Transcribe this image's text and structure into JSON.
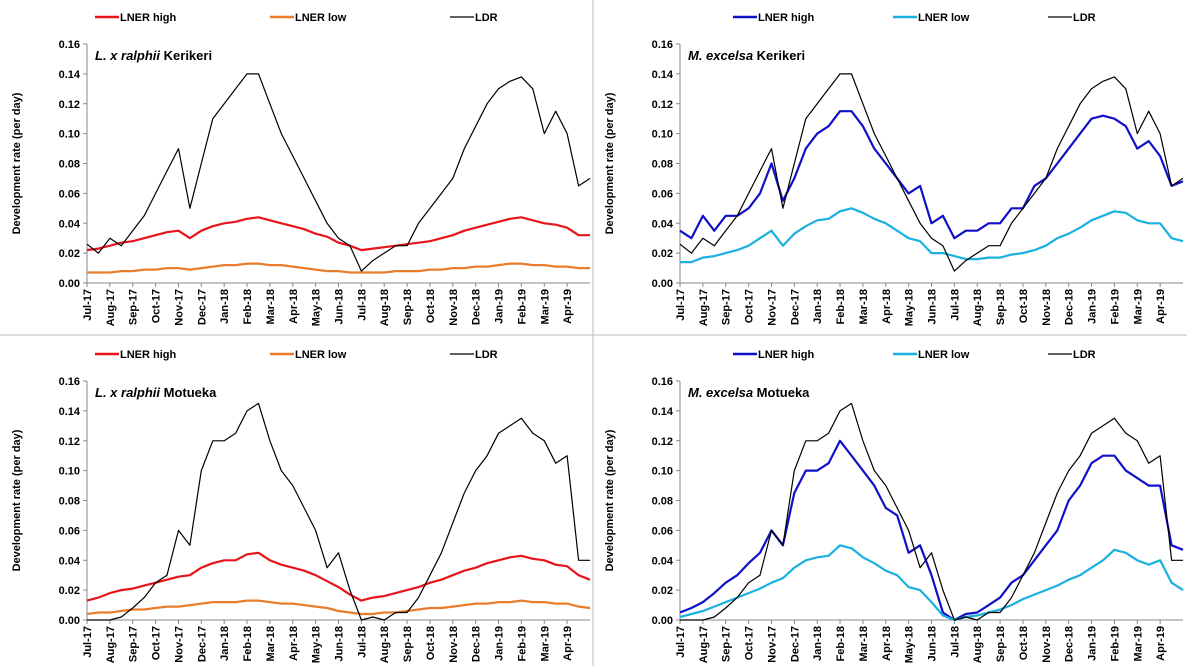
{
  "chart_data": [
    {
      "type": "line",
      "title": {
        "species": "L. x ralphii",
        "site": "Kerikeri"
      },
      "y_label": "Development rate (per day)",
      "categories": [
        "Jul-17",
        null,
        "Aug-17",
        null,
        "Sep-17",
        null,
        "Oct-17",
        null,
        "Nov-17",
        null,
        "Dec-17",
        null,
        "Jan-18",
        null,
        "Feb-18",
        null,
        "Mar-18",
        null,
        "Apr-18",
        null,
        "May-18",
        null,
        "Jun-18",
        null,
        "Jul-18",
        null,
        "Aug-18",
        null,
        "Sep-18",
        null,
        "Oct-18",
        null,
        "Nov-18",
        null,
        "Dec-18",
        null,
        "Jan-19",
        null,
        "Feb-19",
        null,
        "Mar-19",
        null,
        "Apr-19",
        null,
        null
      ],
      "ylim": [
        0,
        0.16
      ],
      "yticks": [
        {
          "value": 0,
          "label": "0.00"
        },
        0.02,
        0.04,
        0.06,
        0.08,
        {
          "value": 0.1,
          "label": "0.10"
        },
        0.12,
        0.14,
        0.16
      ],
      "legend": "top",
      "series": [
        {
          "name": "LNER high",
          "color": "#e8141b",
          "values": [
            0.022,
            0.023,
            0.025,
            0.027,
            0.028,
            0.03,
            0.032,
            0.034,
            0.035,
            0.03,
            0.035,
            0.038,
            0.04,
            0.041,
            0.043,
            0.044,
            0.042,
            0.04,
            0.038,
            0.036,
            0.033,
            0.031,
            0.027,
            0.025,
            0.022,
            0.023,
            0.024,
            0.025,
            0.026,
            0.027,
            0.028,
            0.03,
            0.032,
            0.035,
            0.037,
            0.039,
            0.041,
            0.043,
            0.044,
            0.042,
            0.04,
            0.039,
            0.037,
            0.032,
            0.032
          ]
        },
        {
          "name": "LNER low",
          "color": "#e87d2e",
          "values": [
            0.007,
            0.007,
            0.007,
            0.008,
            0.008,
            0.009,
            0.009,
            0.01,
            0.01,
            0.009,
            0.01,
            0.011,
            0.012,
            0.012,
            0.013,
            0.013,
            0.012,
            0.012,
            0.011,
            0.01,
            0.009,
            0.008,
            0.008,
            0.007,
            0.007,
            0.007,
            0.007,
            0.008,
            0.008,
            0.008,
            0.009,
            0.009,
            0.01,
            0.01,
            0.011,
            0.011,
            0.012,
            0.013,
            0.013,
            0.012,
            0.012,
            0.011,
            0.011,
            0.01,
            0.01
          ]
        },
        {
          "name": "LDR",
          "color": "#000000",
          "values": [
            0.026,
            0.02,
            0.03,
            0.025,
            0.035,
            0.045,
            0.06,
            0.075,
            0.09,
            0.05,
            0.08,
            0.11,
            0.12,
            0.13,
            0.14,
            0.14,
            0.12,
            0.1,
            0.085,
            0.07,
            0.055,
            0.04,
            0.03,
            0.025,
            0.008,
            0.015,
            0.02,
            0.025,
            0.025,
            0.04,
            0.05,
            0.06,
            0.07,
            0.09,
            0.105,
            0.12,
            0.13,
            0.135,
            0.138,
            0.13,
            0.1,
            0.115,
            0.1,
            0.065,
            0.07
          ]
        }
      ]
    },
    {
      "type": "line",
      "title": {
        "species": "M. excelsa",
        "site": "Kerikeri"
      },
      "y_label": "Development rate (per day)",
      "categories": [
        "Jul-17",
        null,
        "Aug-17",
        null,
        "Sep-17",
        null,
        "Oct-17",
        null,
        "Nov-17",
        null,
        "Dec-17",
        null,
        "Jan-18",
        null,
        "Feb-18",
        null,
        "Mar-18",
        null,
        "Apr-18",
        null,
        "May-18",
        null,
        "Jun-18",
        null,
        "Jul-18",
        null,
        "Aug-18",
        null,
        "Sep-18",
        null,
        "Oct-18",
        null,
        "Nov-18",
        null,
        "Dec-18",
        null,
        "Jan-19",
        null,
        "Feb-19",
        null,
        "Mar-19",
        null,
        "Apr-19",
        null,
        null
      ],
      "ylim": [
        0,
        0.16
      ],
      "yticks": [
        {
          "value": 0,
          "label": "0.00"
        },
        0.02,
        0.04,
        0.06,
        0.08,
        {
          "value": 0.1,
          "label": "0.10"
        },
        0.12,
        0.14,
        0.16
      ],
      "legend": "top",
      "series": [
        {
          "name": "LNER high",
          "color": "#1010c8",
          "values": [
            0.035,
            0.03,
            0.045,
            0.035,
            0.045,
            0.045,
            0.05,
            0.06,
            0.08,
            0.055,
            0.07,
            0.09,
            0.1,
            0.105,
            0.115,
            0.115,
            0.105,
            0.09,
            0.08,
            0.07,
            0.06,
            0.065,
            0.04,
            0.045,
            0.03,
            0.035,
            0.035,
            0.04,
            0.04,
            0.05,
            0.05,
            0.065,
            0.07,
            0.08,
            0.09,
            0.1,
            0.11,
            0.112,
            0.11,
            0.105,
            0.09,
            0.095,
            0.085,
            0.065,
            0.068
          ]
        },
        {
          "name": "LNER low",
          "color": "#1ab0e0",
          "values": [
            0.014,
            0.014,
            0.017,
            0.018,
            0.02,
            0.022,
            0.025,
            0.03,
            0.035,
            0.025,
            0.033,
            0.038,
            0.042,
            0.043,
            0.048,
            0.05,
            0.047,
            0.043,
            0.04,
            0.035,
            0.03,
            0.028,
            0.02,
            0.02,
            0.018,
            0.016,
            0.016,
            0.017,
            0.017,
            0.019,
            0.02,
            0.022,
            0.025,
            0.03,
            0.033,
            0.037,
            0.042,
            0.045,
            0.048,
            0.047,
            0.042,
            0.04,
            0.04,
            0.03,
            0.028
          ]
        },
        {
          "name": "LDR",
          "color": "#000000",
          "values": [
            0.026,
            0.02,
            0.03,
            0.025,
            0.035,
            0.045,
            0.06,
            0.075,
            0.09,
            0.05,
            0.08,
            0.11,
            0.12,
            0.13,
            0.14,
            0.14,
            0.12,
            0.1,
            0.085,
            0.07,
            0.055,
            0.04,
            0.03,
            0.025,
            0.008,
            0.015,
            0.02,
            0.025,
            0.025,
            0.04,
            0.05,
            0.06,
            0.07,
            0.09,
            0.105,
            0.12,
            0.13,
            0.135,
            0.138,
            0.13,
            0.1,
            0.115,
            0.1,
            0.065,
            0.07
          ]
        }
      ]
    },
    {
      "type": "line",
      "title": {
        "species": "L. x ralphii",
        "site": "Motueka"
      },
      "y_label": "Development rate (per day)",
      "categories": [
        "Jul-17",
        null,
        "Aug-17",
        null,
        "Sep-17",
        null,
        "Oct-17",
        null,
        "Nov-17",
        null,
        "Dec-17",
        null,
        "Jan-18",
        null,
        "Feb-18",
        null,
        "Mar-18",
        null,
        "Apr-18",
        null,
        "May-18",
        null,
        "Jun-18",
        null,
        "Jul-18",
        null,
        "Aug-18",
        null,
        "Sep-18",
        null,
        "Oct-18",
        null,
        "Nov-18",
        null,
        "Dec-18",
        null,
        "Jan-19",
        null,
        "Feb-19",
        null,
        "Mar-19",
        null,
        "Apr-19",
        null,
        null
      ],
      "ylim": [
        0,
        0.16
      ],
      "yticks": [
        {
          "value": 0,
          "label": "0.00"
        },
        0.02,
        0.04,
        0.06,
        0.08,
        {
          "value": 0.1,
          "label": "0.10"
        },
        0.12,
        0.14,
        0.16
      ],
      "legend": "top",
      "series": [
        {
          "name": "LNER high",
          "color": "#e8141b",
          "values": [
            0.013,
            0.015,
            0.018,
            0.02,
            0.021,
            0.023,
            0.025,
            0.027,
            0.029,
            0.03,
            0.035,
            0.038,
            0.04,
            0.04,
            0.044,
            0.045,
            0.04,
            0.037,
            0.035,
            0.033,
            0.03,
            0.026,
            0.022,
            0.017,
            0.013,
            0.015,
            0.016,
            0.018,
            0.02,
            0.022,
            0.025,
            0.027,
            0.03,
            0.033,
            0.035,
            0.038,
            0.04,
            0.042,
            0.043,
            0.041,
            0.04,
            0.037,
            0.036,
            0.03,
            0.027
          ]
        },
        {
          "name": "LNER low",
          "color": "#e87d2e",
          "values": [
            0.004,
            0.005,
            0.005,
            0.006,
            0.007,
            0.007,
            0.008,
            0.009,
            0.009,
            0.01,
            0.011,
            0.012,
            0.012,
            0.012,
            0.013,
            0.013,
            0.012,
            0.011,
            0.011,
            0.01,
            0.009,
            0.008,
            0.006,
            0.005,
            0.004,
            0.004,
            0.005,
            0.005,
            0.006,
            0.007,
            0.008,
            0.008,
            0.009,
            0.01,
            0.011,
            0.011,
            0.012,
            0.012,
            0.013,
            0.012,
            0.012,
            0.011,
            0.011,
            0.009,
            0.008
          ]
        },
        {
          "name": "LDR",
          "color": "#000000",
          "values": [
            0.0,
            0.0,
            0.0,
            0.002,
            0.008,
            0.015,
            0.025,
            0.03,
            0.06,
            0.05,
            0.1,
            0.12,
            0.12,
            0.125,
            0.14,
            0.145,
            0.12,
            0.1,
            0.09,
            0.075,
            0.06,
            0.035,
            0.045,
            0.02,
            0.0,
            0.002,
            0.0,
            0.005,
            0.005,
            0.015,
            0.03,
            0.045,
            0.065,
            0.085,
            0.1,
            0.11,
            0.125,
            0.13,
            0.135,
            0.125,
            0.12,
            0.105,
            0.11,
            0.04,
            0.04
          ]
        }
      ]
    },
    {
      "type": "line",
      "title": {
        "species": "M. excelsa",
        "site": "Motueka"
      },
      "y_label": "Development rate (per day)",
      "categories": [
        "Jul-17",
        null,
        "Aug-17",
        null,
        "Sep-17",
        null,
        "Oct-17",
        null,
        "Nov-17",
        null,
        "Dec-17",
        null,
        "Jan-18",
        null,
        "Feb-18",
        null,
        "Mar-18",
        null,
        "Apr-18",
        null,
        "May-18",
        null,
        "Jun-18",
        null,
        "Jul-18",
        null,
        "Aug-18",
        null,
        "Sep-18",
        null,
        "Oct-18",
        null,
        "Nov-18",
        null,
        "Dec-18",
        null,
        "Jan-19",
        null,
        "Feb-19",
        null,
        "Mar-19",
        null,
        "Apr-19",
        null,
        null
      ],
      "ylim": [
        0,
        0.16
      ],
      "yticks": [
        {
          "value": 0,
          "label": "0.00"
        },
        0.02,
        0.04,
        0.06,
        0.08,
        {
          "value": 0.1,
          "label": "0.10"
        },
        0.12,
        0.14,
        0.16
      ],
      "legend": "top",
      "series": [
        {
          "name": "LNER high",
          "color": "#1010c8",
          "values": [
            0.005,
            0.008,
            0.012,
            0.018,
            0.025,
            0.03,
            0.038,
            0.045,
            0.06,
            0.05,
            0.085,
            0.1,
            0.1,
            0.105,
            0.12,
            0.11,
            0.1,
            0.09,
            0.075,
            0.07,
            0.045,
            0.05,
            0.03,
            0.005,
            0.0,
            0.004,
            0.005,
            0.01,
            0.015,
            0.025,
            0.03,
            0.04,
            0.05,
            0.06,
            0.08,
            0.09,
            0.105,
            0.11,
            0.11,
            0.1,
            0.095,
            0.09,
            0.09,
            0.05,
            0.047
          ]
        },
        {
          "name": "LNER low",
          "color": "#1ab0e0",
          "values": [
            0.002,
            0.004,
            0.006,
            0.009,
            0.012,
            0.015,
            0.018,
            0.021,
            0.025,
            0.028,
            0.035,
            0.04,
            0.042,
            0.043,
            0.05,
            0.048,
            0.042,
            0.038,
            0.033,
            0.03,
            0.022,
            0.02,
            0.012,
            0.003,
            0.0,
            0.002,
            0.003,
            0.005,
            0.007,
            0.01,
            0.014,
            0.017,
            0.02,
            0.023,
            0.027,
            0.03,
            0.035,
            0.04,
            0.047,
            0.045,
            0.04,
            0.037,
            0.04,
            0.025,
            0.02
          ]
        },
        {
          "name": "LDR",
          "color": "#000000",
          "values": [
            0.0,
            0.0,
            0.0,
            0.002,
            0.008,
            0.015,
            0.025,
            0.03,
            0.06,
            0.05,
            0.1,
            0.12,
            0.12,
            0.125,
            0.14,
            0.145,
            0.12,
            0.1,
            0.09,
            0.075,
            0.06,
            0.035,
            0.045,
            0.02,
            0.0,
            0.002,
            0.0,
            0.005,
            0.005,
            0.015,
            0.03,
            0.045,
            0.065,
            0.085,
            0.1,
            0.11,
            0.125,
            0.13,
            0.135,
            0.125,
            0.12,
            0.105,
            0.11,
            0.04,
            0.04
          ]
        }
      ]
    }
  ]
}
